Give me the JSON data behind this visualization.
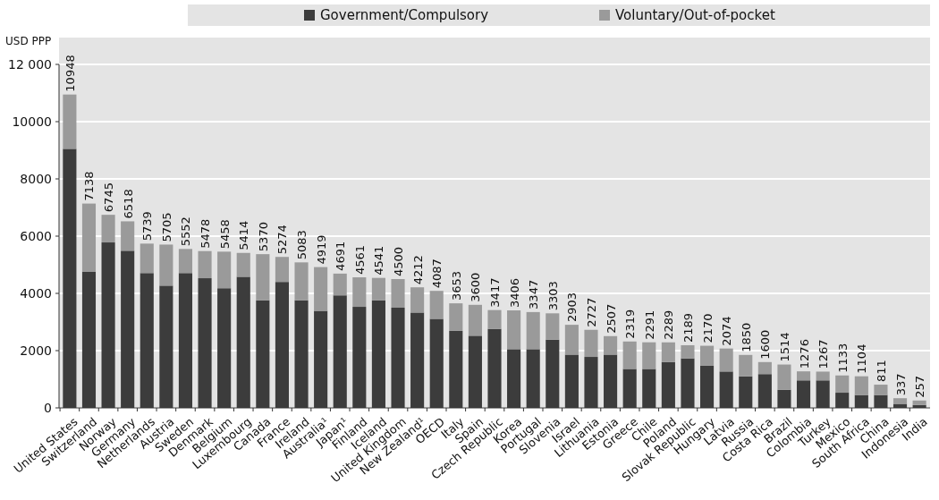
{
  "chart_data": {
    "type": "bar",
    "stacked": true,
    "ylabel": "USD PPP",
    "categories": [
      "United States",
      "Switzerland",
      "Norway",
      "Germany",
      "Netherlands",
      "Austria",
      "Sweden",
      "Denmark",
      "Belgium",
      "Luxembourg",
      "Canada",
      "France",
      "Ireland",
      "Australia¹",
      "Japan¹",
      "Finland",
      "Iceland",
      "United Kingdom",
      "New Zealand¹",
      "OECD",
      "Italy",
      "Spain",
      "Czech Republic",
      "Korea",
      "Portugal",
      "Slovenia",
      "Israel",
      "Lithuania",
      "Estonia",
      "Greece",
      "Chile",
      "Poland",
      "Slovak Republic",
      "Hungary",
      "Latvia",
      "Russia",
      "Costa Rica",
      "Brazil",
      "Colombia",
      "Turkey",
      "Mexico",
      "South Africa",
      "China",
      "Indonesia",
      "India"
    ],
    "series": [
      {
        "name": "Government/Compulsory",
        "color": "#3c3c3c",
        "values": [
          9050,
          4750,
          5780,
          5490,
          4710,
          4270,
          4710,
          4530,
          4180,
          4580,
          3760,
          4400,
          3760,
          3390,
          3930,
          3530,
          3760,
          3500,
          3330,
          3110,
          2690,
          2520,
          2760,
          2050,
          2050,
          2380,
          1860,
          1780,
          1860,
          1360,
          1360,
          1600,
          1730,
          1470,
          1270,
          1100,
          1180,
          630,
          960,
          960,
          530,
          450,
          450,
          140,
          100
        ]
      },
      {
        "name": "Voluntary/Out-of-pocket",
        "color": "#9a9a9a",
        "values": [
          1898,
          2388,
          965,
          1028,
          1029,
          1435,
          842,
          948,
          1278,
          834,
          1610,
          874,
          1323,
          1529,
          761,
          1031,
          781,
          1000,
          882,
          977,
          963,
          1080,
          657,
          1356,
          1297,
          923,
          1043,
          947,
          647,
          959,
          931,
          689,
          459,
          700,
          804,
          750,
          420,
          884,
          316,
          307,
          603,
          654,
          361,
          197,
          157
        ]
      }
    ],
    "totals": [
      "10948",
      "7138",
      "6745",
      "6518",
      "5739",
      "5705",
      "5552",
      "5478",
      "5458",
      "5414",
      "5370",
      "5274",
      "5083",
      "4919",
      "4691",
      "4561",
      "4541",
      "4500",
      "4212",
      "4087",
      "3653",
      "3600",
      "3417",
      "3406",
      "3347",
      "3303",
      "2903",
      "2727",
      "2507",
      "2319",
      "2291",
      "2289",
      "2189",
      "2170",
      "2074",
      "1850",
      "1600",
      "1514",
      "1276",
      "1267",
      "1133",
      "1104",
      "811",
      "337",
      "257"
    ],
    "ylim": [
      0,
      12000
    ],
    "yticks": [
      0,
      2000,
      4000,
      6000,
      8000,
      10000,
      {
        "value": 12000,
        "label": "12 000"
      }
    ],
    "grid": "y",
    "legend": "top"
  }
}
